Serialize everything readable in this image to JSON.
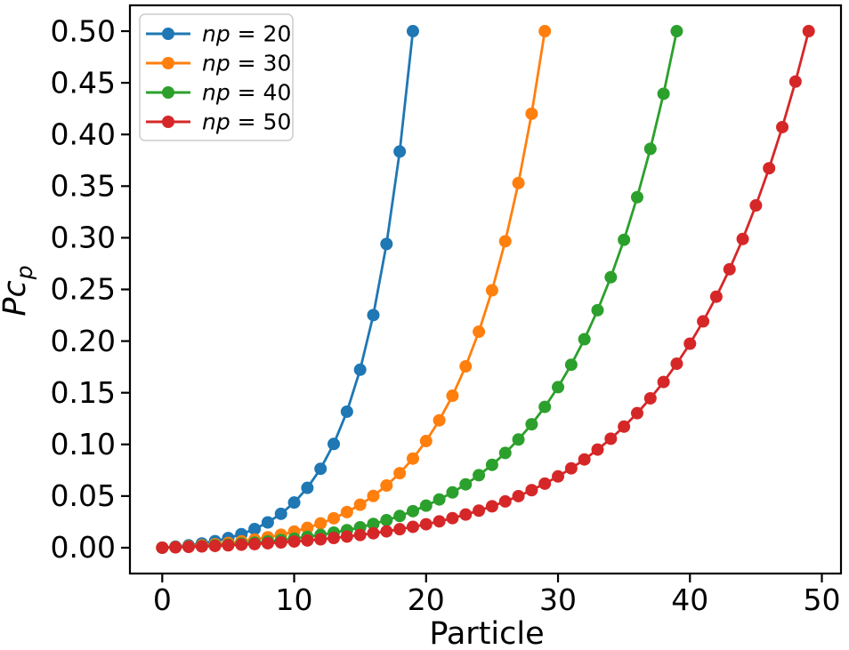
{
  "chart_data": {
    "type": "line",
    "title": "",
    "xlabel": "Particle",
    "ylabel": "Pc_p",
    "ylabel_parts": {
      "main": "Pc",
      "subscript": "p"
    },
    "xlim": [
      -2.45,
      51.45
    ],
    "ylim": [
      -0.025,
      0.525
    ],
    "xticks": [
      0,
      10,
      20,
      30,
      40,
      50
    ],
    "xtick_labels": [
      "0",
      "10",
      "20",
      "30",
      "40",
      "50"
    ],
    "yticks": [
      0.0,
      0.05,
      0.1,
      0.15,
      0.2,
      0.25,
      0.3,
      0.35,
      0.4,
      0.45,
      0.5
    ],
    "ytick_labels": [
      "0.00",
      "0.05",
      "0.10",
      "0.15",
      "0.20",
      "0.25",
      "0.30",
      "0.35",
      "0.40",
      "0.45",
      "0.50"
    ],
    "grid": false,
    "legend": {
      "position": "upper-left",
      "entries": [
        {
          "label": "np = 20",
          "italic_part": "np",
          "plain_part": " = 20",
          "color": "#1f77b4"
        },
        {
          "label": "np = 30",
          "italic_part": "np",
          "plain_part": " = 30",
          "color": "#ff7f0e"
        },
        {
          "label": "np = 40",
          "italic_part": "np",
          "plain_part": " = 40",
          "color": "#2ca02c"
        },
        {
          "label": "np = 50",
          "italic_part": "np",
          "plain_part": " = 50",
          "color": "#d62728"
        }
      ]
    },
    "series": [
      {
        "name": "np = 20",
        "color": "#1f77b4",
        "marker": "circle",
        "x": [
          0,
          1,
          2,
          3,
          4,
          5,
          6,
          7,
          8,
          9,
          10,
          11,
          12,
          13,
          14,
          15,
          16,
          17,
          18,
          19
        ],
        "y": [
          0.0,
          0.001,
          0.0023,
          0.0041,
          0.0063,
          0.0093,
          0.0131,
          0.018,
          0.0245,
          0.0328,
          0.0437,
          0.0579,
          0.0764,
          0.1004,
          0.1317,
          0.1723,
          0.2252,
          0.294,
          0.3835,
          0.5
        ]
      },
      {
        "name": "np = 30",
        "color": "#ff7f0e",
        "marker": "circle",
        "x": [
          0,
          1,
          2,
          3,
          4,
          5,
          6,
          7,
          8,
          9,
          10,
          11,
          12,
          13,
          14,
          15,
          16,
          17,
          18,
          19,
          20,
          21,
          22,
          23,
          24,
          25,
          26,
          27,
          28,
          29
        ],
        "y": [
          0.0,
          0.0006,
          0.0014,
          0.0023,
          0.0034,
          0.0046,
          0.0062,
          0.0079,
          0.0101,
          0.0126,
          0.0156,
          0.0192,
          0.0235,
          0.0285,
          0.0345,
          0.0416,
          0.0501,
          0.0602,
          0.0721,
          0.0863,
          0.1032,
          0.1233,
          0.1471,
          0.1755,
          0.2091,
          0.2491,
          0.2966,
          0.353,
          0.4201,
          0.5
        ]
      },
      {
        "name": "np = 40",
        "color": "#2ca02c",
        "marker": "circle",
        "x": [
          0,
          1,
          2,
          3,
          4,
          5,
          6,
          7,
          8,
          9,
          10,
          11,
          12,
          13,
          14,
          15,
          16,
          17,
          18,
          19,
          20,
          21,
          22,
          23,
          24,
          25,
          26,
          27,
          28,
          29,
          30,
          31,
          32,
          33,
          34,
          35,
          36,
          37,
          38,
          39
        ],
        "y": [
          0.0,
          0.0005,
          0.001,
          0.0016,
          0.0023,
          0.003,
          0.0039,
          0.0049,
          0.0061,
          0.0074,
          0.0088,
          0.0105,
          0.0124,
          0.0146,
          0.017,
          0.0198,
          0.023,
          0.0266,
          0.0307,
          0.0354,
          0.0407,
          0.0467,
          0.0535,
          0.0613,
          0.0702,
          0.0802,
          0.0917,
          0.1047,
          0.1195,
          0.1363,
          0.1554,
          0.1771,
          0.2018,
          0.2299,
          0.2618,
          0.298,
          0.3393,
          0.3861,
          0.4394,
          0.5
        ]
      },
      {
        "name": "np = 50",
        "color": "#d62728",
        "marker": "circle",
        "x": [
          0,
          1,
          2,
          3,
          4,
          5,
          6,
          7,
          8,
          9,
          10,
          11,
          12,
          13,
          14,
          15,
          16,
          17,
          18,
          19,
          20,
          21,
          22,
          23,
          24,
          25,
          26,
          27,
          28,
          29,
          30,
          31,
          32,
          33,
          34,
          35,
          36,
          37,
          38,
          39,
          40,
          41,
          42,
          43,
          44,
          45,
          46,
          47,
          48,
          49
        ],
        "y": [
          0.0,
          0.0004,
          0.0008,
          0.0012,
          0.0017,
          0.0023,
          0.0029,
          0.0035,
          0.0043,
          0.0051,
          0.006,
          0.007,
          0.0081,
          0.0094,
          0.0108,
          0.0123,
          0.014,
          0.0158,
          0.0179,
          0.0202,
          0.0227,
          0.0255,
          0.0286,
          0.0321,
          0.0359,
          0.0401,
          0.0448,
          0.0499,
          0.0557,
          0.062,
          0.069,
          0.0768,
          0.0854,
          0.095,
          0.1055,
          0.1172,
          0.1302,
          0.1446,
          0.1604,
          0.1781,
          0.1975,
          0.2191,
          0.243,
          0.2695,
          0.2988,
          0.3313,
          0.3673,
          0.4071,
          0.4512,
          0.5
        ]
      }
    ]
  }
}
